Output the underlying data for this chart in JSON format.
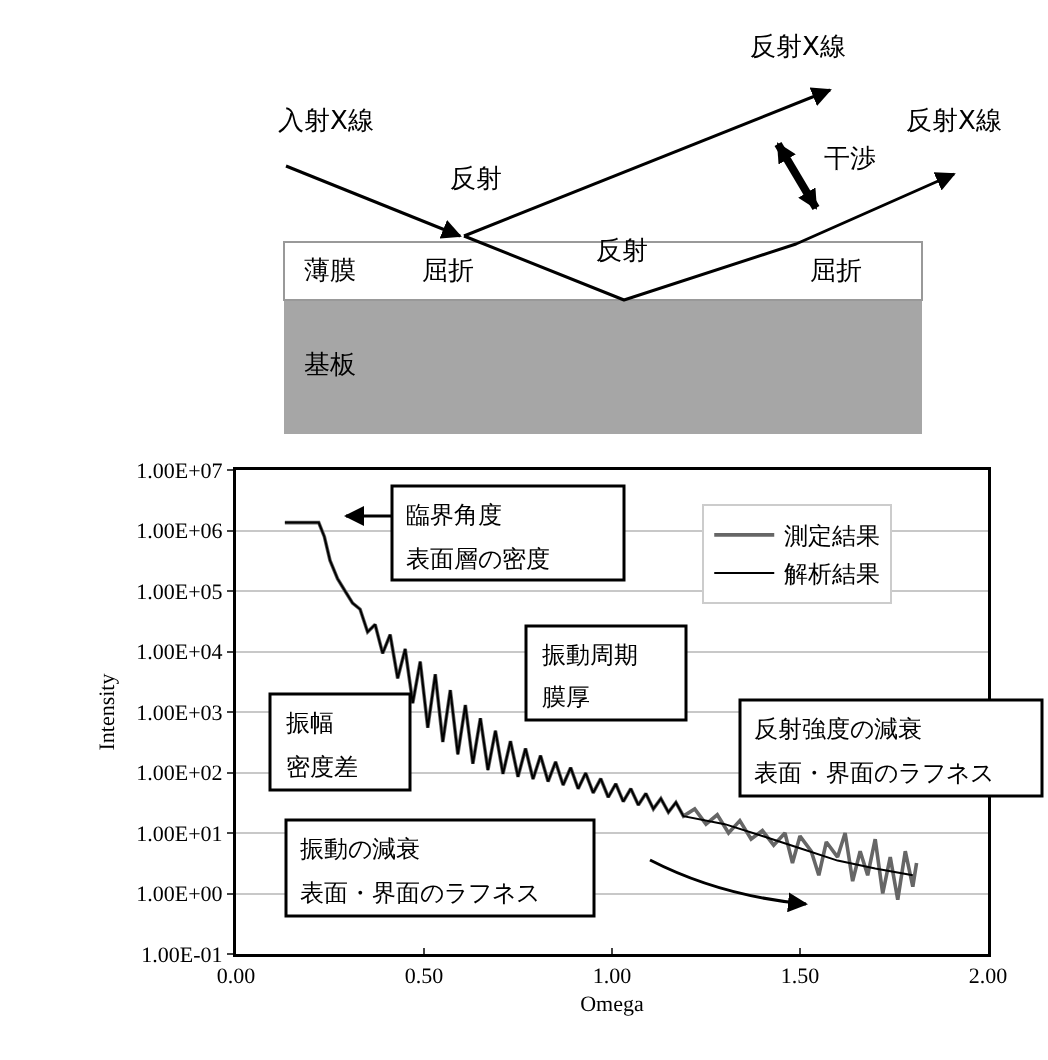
{
  "chart_data": {
    "type": "line",
    "xlabel": "Omega",
    "ylabel": "Intensity",
    "log": "y",
    "grid": "y",
    "legend": "top right",
    "marker": "none",
    "line_style": "solid",
    "xlim": [
      0,
      2
    ],
    "xticks": [
      {
        "value": 0,
        "label": "0.00"
      },
      {
        "value": 0.5,
        "label": "0.50"
      },
      {
        "value": 1,
        "label": "1.00"
      },
      {
        "value": 1.5,
        "label": "1.50"
      },
      {
        "value": 2,
        "label": "2.00"
      }
    ],
    "ylim": [
      0.1,
      10000000
    ],
    "yticks": [
      {
        "value": 0.1,
        "label": "1.00E-01"
      },
      {
        "value": 1,
        "label": "1.00E+00"
      },
      {
        "value": 10,
        "label": "1.00E+01"
      },
      {
        "value": 100,
        "label": "1.00E+02"
      },
      {
        "value": 1000,
        "label": "1.00E+03"
      },
      {
        "value": 10000,
        "label": "1.00E+04"
      },
      {
        "value": 100000,
        "label": "1.00E+05"
      },
      {
        "value": 1000000,
        "label": "1.00E+06"
      },
      {
        "value": 10000000,
        "label": "1.00E+07"
      }
    ],
    "series": [
      {
        "name": "測定結果",
        "color": "#666666",
        "x": [
          0.13,
          0.22,
          0.235,
          0.25,
          0.27,
          0.29,
          0.31,
          0.33,
          0.35,
          0.37,
          0.39,
          0.41,
          0.43,
          0.45,
          0.47,
          0.49,
          0.51,
          0.53,
          0.55,
          0.57,
          0.59,
          0.61,
          0.63,
          0.65,
          0.67,
          0.69,
          0.71,
          0.73,
          0.75,
          0.77,
          0.79,
          0.81,
          0.83,
          0.85,
          0.87,
          0.89,
          0.91,
          0.93,
          0.95,
          0.97,
          0.99,
          1.01,
          1.03,
          1.05,
          1.07,
          1.09,
          1.11,
          1.13,
          1.15,
          1.17,
          1.19,
          1.22,
          1.25,
          1.28,
          1.31,
          1.34,
          1.37,
          1.4,
          1.43,
          1.46,
          1.48,
          1.5,
          1.53,
          1.55,
          1.57,
          1.6,
          1.62,
          1.64,
          1.66,
          1.68,
          1.7,
          1.72,
          1.74,
          1.76,
          1.78,
          1.8,
          1.81
        ],
        "values": [
          1350000,
          1350000,
          790000,
          320000,
          160000,
          100000,
          63000,
          50000,
          21000,
          28000,
          9300,
          19000,
          3600,
          11000,
          1400,
          6800,
          550,
          4200,
          320,
          2300,
          200,
          1300,
          140,
          790,
          110,
          490,
          95,
          330,
          85,
          250,
          78,
          190,
          71,
          150,
          62,
          120,
          54,
          98,
          46,
          79,
          39,
          65,
          33,
          54,
          29,
          45,
          25,
          37,
          22,
          32,
          19,
          25,
          14,
          20,
          10,
          16,
          7.9,
          11,
          6.3,
          10,
          3.2,
          8.9,
          5,
          2,
          7.1,
          4,
          10,
          1.6,
          5,
          2,
          7.9,
          1,
          4,
          0.79,
          5,
          1.3,
          3.2
        ]
      },
      {
        "name": "解析結果",
        "color": "#000000",
        "x": [
          0.13,
          0.22,
          0.235,
          0.25,
          0.27,
          0.29,
          0.31,
          0.33,
          0.35,
          0.37,
          0.39,
          0.41,
          0.43,
          0.45,
          0.47,
          0.49,
          0.51,
          0.53,
          0.55,
          0.57,
          0.59,
          0.61,
          0.63,
          0.65,
          0.67,
          0.69,
          0.71,
          0.73,
          0.75,
          0.77,
          0.79,
          0.81,
          0.83,
          0.85,
          0.87,
          0.89,
          0.91,
          0.93,
          0.95,
          0.97,
          0.99,
          1.01,
          1.03,
          1.05,
          1.07,
          1.09,
          1.11,
          1.13,
          1.15,
          1.17,
          1.19,
          1.3,
          1.4,
          1.5,
          1.6,
          1.7,
          1.8
        ],
        "values": [
          1350000,
          1350000,
          790000,
          320000,
          160000,
          100000,
          63000,
          50000,
          21000,
          28000,
          9300,
          19000,
          3600,
          11000,
          1400,
          6800,
          550,
          4200,
          320,
          2300,
          200,
          1300,
          140,
          790,
          110,
          490,
          95,
          330,
          85,
          250,
          78,
          190,
          71,
          150,
          62,
          120,
          54,
          98,
          46,
          79,
          39,
          65,
          33,
          54,
          29,
          45,
          25,
          37,
          22,
          32,
          19,
          14,
          8.9,
          5.6,
          3.5,
          2.6,
          2
        ]
      }
    ],
    "annotations": [
      "入射X線",
      "反射X線",
      "反射X線",
      "反射",
      "干渉",
      "反射",
      "薄膜",
      "屈折",
      "屈折",
      "基板",
      "臨界角度",
      "表面層の密度",
      "振動周期",
      "膜厚",
      "振幅",
      "密度差",
      "反射強度の減衰",
      "表面・界面のラフネス",
      "振動の減衰",
      "表面・界面のラフネス"
    ]
  }
}
